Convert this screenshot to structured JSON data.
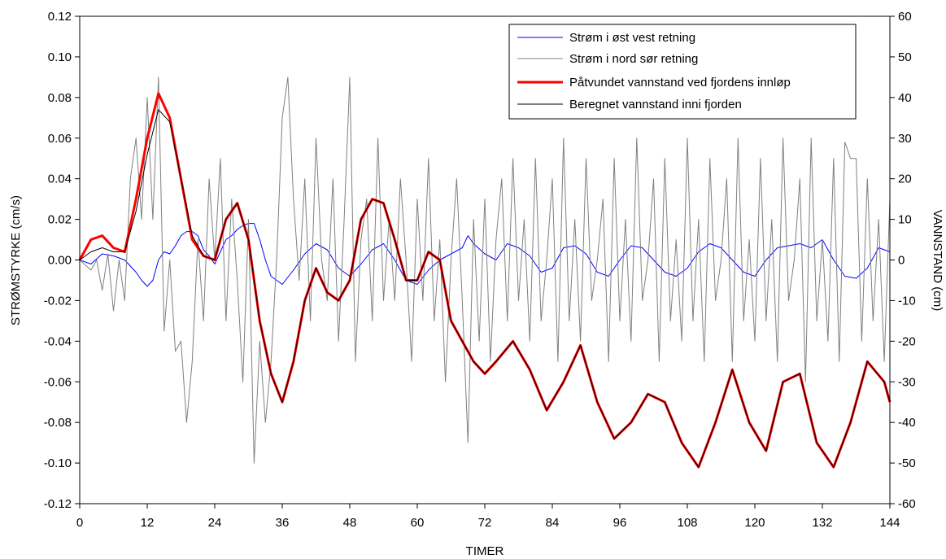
{
  "chart_data": {
    "type": "line",
    "xlabel": "TIMER",
    "ylabel_left": "STRØMSTYRKE (cm/s)",
    "ylabel_right": "VANNSTAND (cm)",
    "xlim": [
      0,
      144
    ],
    "ylim_left": [
      -0.12,
      0.12
    ],
    "ylim_right": [
      -60,
      60
    ],
    "xticks": [
      "0",
      "12",
      "24",
      "36",
      "48",
      "60",
      "72",
      "84",
      "96",
      "108",
      "120",
      "132",
      "144"
    ],
    "yticks_left": [
      "0.12",
      "0.10",
      "0.08",
      "0.06",
      "0.04",
      "0.02",
      "0.00",
      "-0.02",
      "-0.04",
      "-0.06",
      "-0.08",
      "-0.10",
      "-0.12"
    ],
    "yticks_right": [
      "60",
      "50",
      "40",
      "30",
      "20",
      "10",
      "0",
      "-10",
      "-20",
      "-30",
      "-40",
      "-50",
      "-60"
    ],
    "grid": false,
    "legend_position": "top-right",
    "series": [
      {
        "name": "Strøm i øst vest retning",
        "axis": "left",
        "color": "#0000ff",
        "width": 1,
        "x": [
          0,
          2,
          4,
          6,
          8,
          10,
          11,
          12,
          13,
          14,
          15,
          16,
          17,
          18,
          19,
          20,
          21,
          22,
          23,
          24,
          25,
          26,
          27,
          28,
          29,
          30,
          31,
          32,
          33,
          34,
          36,
          38,
          40,
          42,
          44,
          46,
          48,
          50,
          52,
          54,
          56,
          58,
          60,
          62,
          64,
          66,
          68,
          69,
          70,
          72,
          74,
          76,
          78,
          80,
          82,
          84,
          86,
          88,
          90,
          92,
          94,
          96,
          98,
          100,
          102,
          104,
          106,
          108,
          110,
          112,
          114,
          116,
          118,
          120,
          122,
          124,
          126,
          128,
          130,
          132,
          134,
          136,
          138,
          140,
          142,
          144
        ],
        "y": [
          0.0,
          -0.002,
          0.003,
          0.002,
          0.0,
          -0.006,
          -0.01,
          -0.013,
          -0.01,
          0.0,
          0.004,
          0.003,
          0.007,
          0.012,
          0.014,
          0.014,
          0.012,
          0.005,
          0.002,
          -0.002,
          0.004,
          0.01,
          0.012,
          0.015,
          0.017,
          0.018,
          0.018,
          0.01,
          0.0,
          -0.008,
          -0.012,
          -0.005,
          0.003,
          0.008,
          0.005,
          -0.004,
          -0.008,
          -0.002,
          0.005,
          0.008,
          0.0,
          -0.01,
          -0.012,
          -0.005,
          0.0,
          0.003,
          0.006,
          0.012,
          0.008,
          0.003,
          0.0,
          0.008,
          0.006,
          0.002,
          -0.006,
          -0.004,
          0.006,
          0.007,
          0.003,
          -0.006,
          -0.008,
          0.0,
          0.007,
          0.006,
          0.0,
          -0.006,
          -0.008,
          -0.004,
          0.004,
          0.008,
          0.006,
          0.0,
          -0.006,
          -0.008,
          0.0,
          0.006,
          0.007,
          0.008,
          0.006,
          0.01,
          0.0,
          -0.008,
          -0.009,
          -0.004,
          0.006,
          0.004
        ]
      },
      {
        "name": "Strøm i nord sør retning",
        "axis": "left",
        "color": "#808080",
        "width": 1,
        "x": [
          0,
          2,
          3,
          4,
          5,
          6,
          7,
          8,
          9,
          10,
          11,
          12,
          13,
          14,
          15,
          16,
          17,
          18,
          19,
          20,
          21,
          22,
          23,
          24,
          25,
          26,
          27,
          28,
          29,
          30,
          31,
          32,
          33,
          34,
          35,
          36,
          37,
          38,
          39,
          40,
          41,
          42,
          43,
          44,
          45,
          46,
          47,
          48,
          49,
          50,
          51,
          52,
          53,
          54,
          55,
          56,
          57,
          58,
          59,
          60,
          61,
          62,
          63,
          64,
          65,
          66,
          67,
          68,
          69,
          70,
          71,
          72,
          73,
          74,
          75,
          76,
          77,
          78,
          79,
          80,
          81,
          82,
          83,
          84,
          85,
          86,
          87,
          88,
          89,
          90,
          91,
          92,
          93,
          94,
          95,
          96,
          97,
          98,
          99,
          100,
          101,
          102,
          103,
          104,
          105,
          106,
          107,
          108,
          109,
          110,
          111,
          112,
          113,
          114,
          115,
          116,
          117,
          118,
          119,
          120,
          121,
          122,
          123,
          124,
          125,
          126,
          127,
          128,
          129,
          130,
          131,
          132,
          133,
          134,
          135,
          136,
          137,
          138,
          139,
          140,
          141,
          142,
          143,
          144
        ],
        "y": [
          0.0,
          -0.005,
          0.0,
          -0.015,
          0.003,
          -0.025,
          0.0,
          -0.02,
          0.04,
          0.06,
          0.02,
          0.08,
          0.02,
          0.09,
          -0.035,
          0.0,
          -0.045,
          -0.04,
          -0.08,
          -0.05,
          0.01,
          -0.03,
          0.04,
          0.0,
          0.05,
          -0.03,
          0.03,
          -0.01,
          -0.06,
          0.02,
          -0.1,
          -0.04,
          -0.08,
          -0.05,
          0.0,
          0.07,
          0.09,
          0.03,
          -0.01,
          0.04,
          -0.03,
          0.06,
          0.0,
          -0.02,
          0.04,
          -0.04,
          0.02,
          0.09,
          -0.05,
          0.01,
          0.03,
          -0.03,
          0.06,
          -0.02,
          0.02,
          -0.02,
          0.04,
          0.0,
          -0.05,
          0.03,
          -0.02,
          0.05,
          -0.03,
          0.01,
          -0.06,
          0.0,
          0.04,
          -0.02,
          -0.09,
          0.02,
          -0.04,
          0.03,
          -0.05,
          0.01,
          0.04,
          -0.03,
          0.05,
          -0.02,
          0.02,
          -0.04,
          0.05,
          -0.03,
          0.0,
          0.04,
          -0.05,
          0.06,
          -0.03,
          0.02,
          -0.04,
          0.05,
          -0.02,
          0.0,
          0.03,
          -0.05,
          0.05,
          -0.03,
          0.02,
          -0.04,
          0.06,
          -0.02,
          0.0,
          0.04,
          -0.05,
          0.05,
          -0.03,
          0.01,
          -0.04,
          0.06,
          -0.03,
          0.02,
          -0.05,
          0.05,
          -0.02,
          0.0,
          0.04,
          -0.05,
          0.06,
          -0.03,
          0.01,
          -0.04,
          0.05,
          -0.03,
          0.02,
          -0.05,
          0.06,
          -0.02,
          0.0,
          0.04,
          -0.06,
          0.06,
          -0.03,
          0.01,
          -0.04,
          0.05,
          -0.05,
          0.058,
          0.05,
          0.05,
          -0.04,
          0.04,
          -0.03,
          0.02,
          -0.05,
          0.03
        ]
      },
      {
        "name": "Påtvundet vannstand ved fjordens innløp",
        "axis": "right",
        "color": "#ff0000",
        "width": 3,
        "x": [
          0,
          2,
          4,
          6,
          8,
          10,
          12,
          14,
          16,
          18,
          20,
          22,
          24,
          26,
          28,
          30,
          32,
          34,
          36,
          38,
          40,
          42,
          44,
          46,
          48,
          50,
          52,
          54,
          56,
          58,
          60,
          62,
          64,
          66,
          68,
          70,
          72,
          74,
          77,
          80,
          83,
          86,
          89,
          92,
          95,
          98,
          101,
          104,
          107,
          110,
          113,
          116,
          119,
          122,
          125,
          128,
          131,
          134,
          137,
          140,
          143,
          144
        ],
        "y": [
          0,
          5,
          6,
          3,
          2,
          15,
          30,
          41,
          35,
          20,
          5,
          1,
          0,
          10,
          14,
          5,
          -15,
          -28,
          -35,
          -25,
          -10,
          -2,
          -8,
          -10,
          -5,
          10,
          15,
          14,
          5,
          -5,
          -5,
          2,
          0,
          -15,
          -20,
          -25,
          -28,
          -25,
          -20,
          -27,
          -37,
          -30,
          -21,
          -35,
          -44,
          -40,
          -33,
          -35,
          -45,
          -51,
          -40,
          -27,
          -40,
          -47,
          -30,
          -28,
          -45,
          -51,
          -40,
          -25,
          -30,
          -35
        ]
      },
      {
        "name": "Beregnet vannstand inni fjorden",
        "axis": "right",
        "color": "#000000",
        "width": 1,
        "x": [
          0,
          2,
          4,
          6,
          8,
          10,
          12,
          14,
          16,
          18,
          20,
          22,
          24,
          26,
          28,
          30,
          32,
          34,
          36,
          38,
          40,
          42,
          44,
          46,
          48,
          50,
          52,
          54,
          56,
          58,
          60,
          62,
          64,
          66,
          68,
          70,
          72,
          74,
          77,
          80,
          83,
          86,
          89,
          92,
          95,
          98,
          101,
          104,
          107,
          110,
          113,
          116,
          119,
          122,
          125,
          128,
          131,
          134,
          137,
          140,
          143,
          144
        ],
        "y": [
          0,
          2,
          3,
          2,
          2,
          12,
          26,
          37,
          34,
          20,
          6,
          1,
          0,
          10,
          14,
          5,
          -15,
          -28,
          -35,
          -25,
          -10,
          -2,
          -8,
          -10,
          -5,
          10,
          15,
          14,
          5,
          -5,
          -5,
          2,
          0,
          -15,
          -20,
          -25,
          -28,
          -25,
          -20,
          -27,
          -37,
          -30,
          -21,
          -35,
          -44,
          -40,
          -33,
          -35,
          -45,
          -51,
          -40,
          -27,
          -40,
          -47,
          -30,
          -28,
          -45,
          -51,
          -40,
          -25,
          -30,
          -35
        ]
      }
    ]
  }
}
